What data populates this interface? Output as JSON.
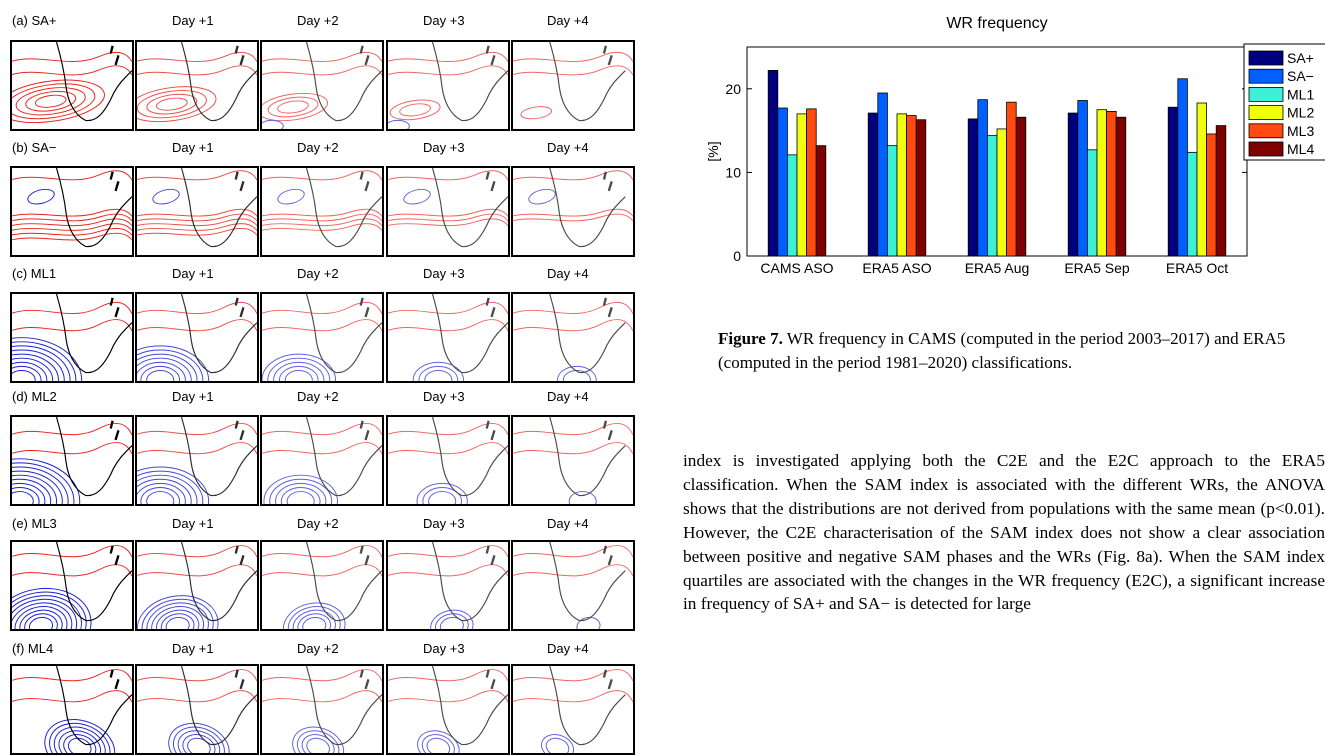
{
  "panels": {
    "rows": [
      {
        "label": "(a) SA+",
        "days": [
          "Day +1",
          "Day +2",
          "Day +3",
          "Day +4"
        ]
      },
      {
        "label": "(b) SA−",
        "days": [
          "Day +1",
          "Day +2",
          "Day +3",
          "Day +4"
        ]
      },
      {
        "label": "(c) ML1",
        "days": [
          "Day +1",
          "Day +2",
          "Day +3",
          "Day +4"
        ]
      },
      {
        "label": "(d) ML2",
        "days": [
          "Day +1",
          "Day +2",
          "Day +3",
          "Day +4"
        ]
      },
      {
        "label": "(e) ML3",
        "days": [
          "Day +1",
          "Day +2",
          "Day +3",
          "Day +4"
        ]
      },
      {
        "label": "(f) ML4",
        "days": [
          "Day +1",
          "Day +2",
          "Day +3",
          "Day +4"
        ]
      }
    ],
    "colors": {
      "positive": "#e8251f",
      "negative": "#1a1fd0",
      "coast": "#000000"
    }
  },
  "chart_data": {
    "type": "bar",
    "title": "WR frequency",
    "ylabel": "[%]",
    "xlabel": "",
    "ylim": [
      0,
      25
    ],
    "yticks": [
      0,
      10,
      20
    ],
    "categories": [
      "CAMS ASO",
      "ERA5 ASO",
      "ERA5 Aug",
      "ERA5 Sep",
      "ERA5 Oct"
    ],
    "series": [
      {
        "name": "SA+",
        "color": "#00007f",
        "values": [
          22.2,
          17.1,
          16.4,
          17.1,
          17.8
        ]
      },
      {
        "name": "SA−",
        "color": "#0060ff",
        "values": [
          17.7,
          19.5,
          18.7,
          18.6,
          21.2
        ]
      },
      {
        "name": "ML1",
        "color": "#3ff0d8",
        "values": [
          12.1,
          13.2,
          14.4,
          12.7,
          12.4
        ]
      },
      {
        "name": "ML2",
        "color": "#f0ff10",
        "values": [
          17.0,
          17.0,
          15.2,
          17.5,
          18.3
        ]
      },
      {
        "name": "ML3",
        "color": "#ff4a10",
        "values": [
          17.6,
          16.8,
          18.4,
          17.3,
          14.6
        ]
      },
      {
        "name": "ML4",
        "color": "#7f0000",
        "values": [
          13.2,
          16.3,
          16.6,
          16.6,
          15.6
        ]
      }
    ],
    "legend_position": "right"
  },
  "caption": {
    "label": "Figure 7.",
    "text": " WR frequency in CAMS (computed in the period 2003–2017) and ERA5 (computed in the period 1981–2020) classifications."
  },
  "body_text": "index is investigated applying both the C2E and the E2C approach to the ERA5 classification. When the SAM index is associated with the different WRs, the ANOVA shows that the distributions are not derived from populations with the same mean (p<0.01). However, the C2E characterisation of the SAM index does not show a clear association between positive and negative SAM phases and the WRs (Fig. 8a). When the SAM index quartiles are associated with the changes in the WR frequency (E2C), a significant increase in frequency of SA+ and SA− is detected for large"
}
